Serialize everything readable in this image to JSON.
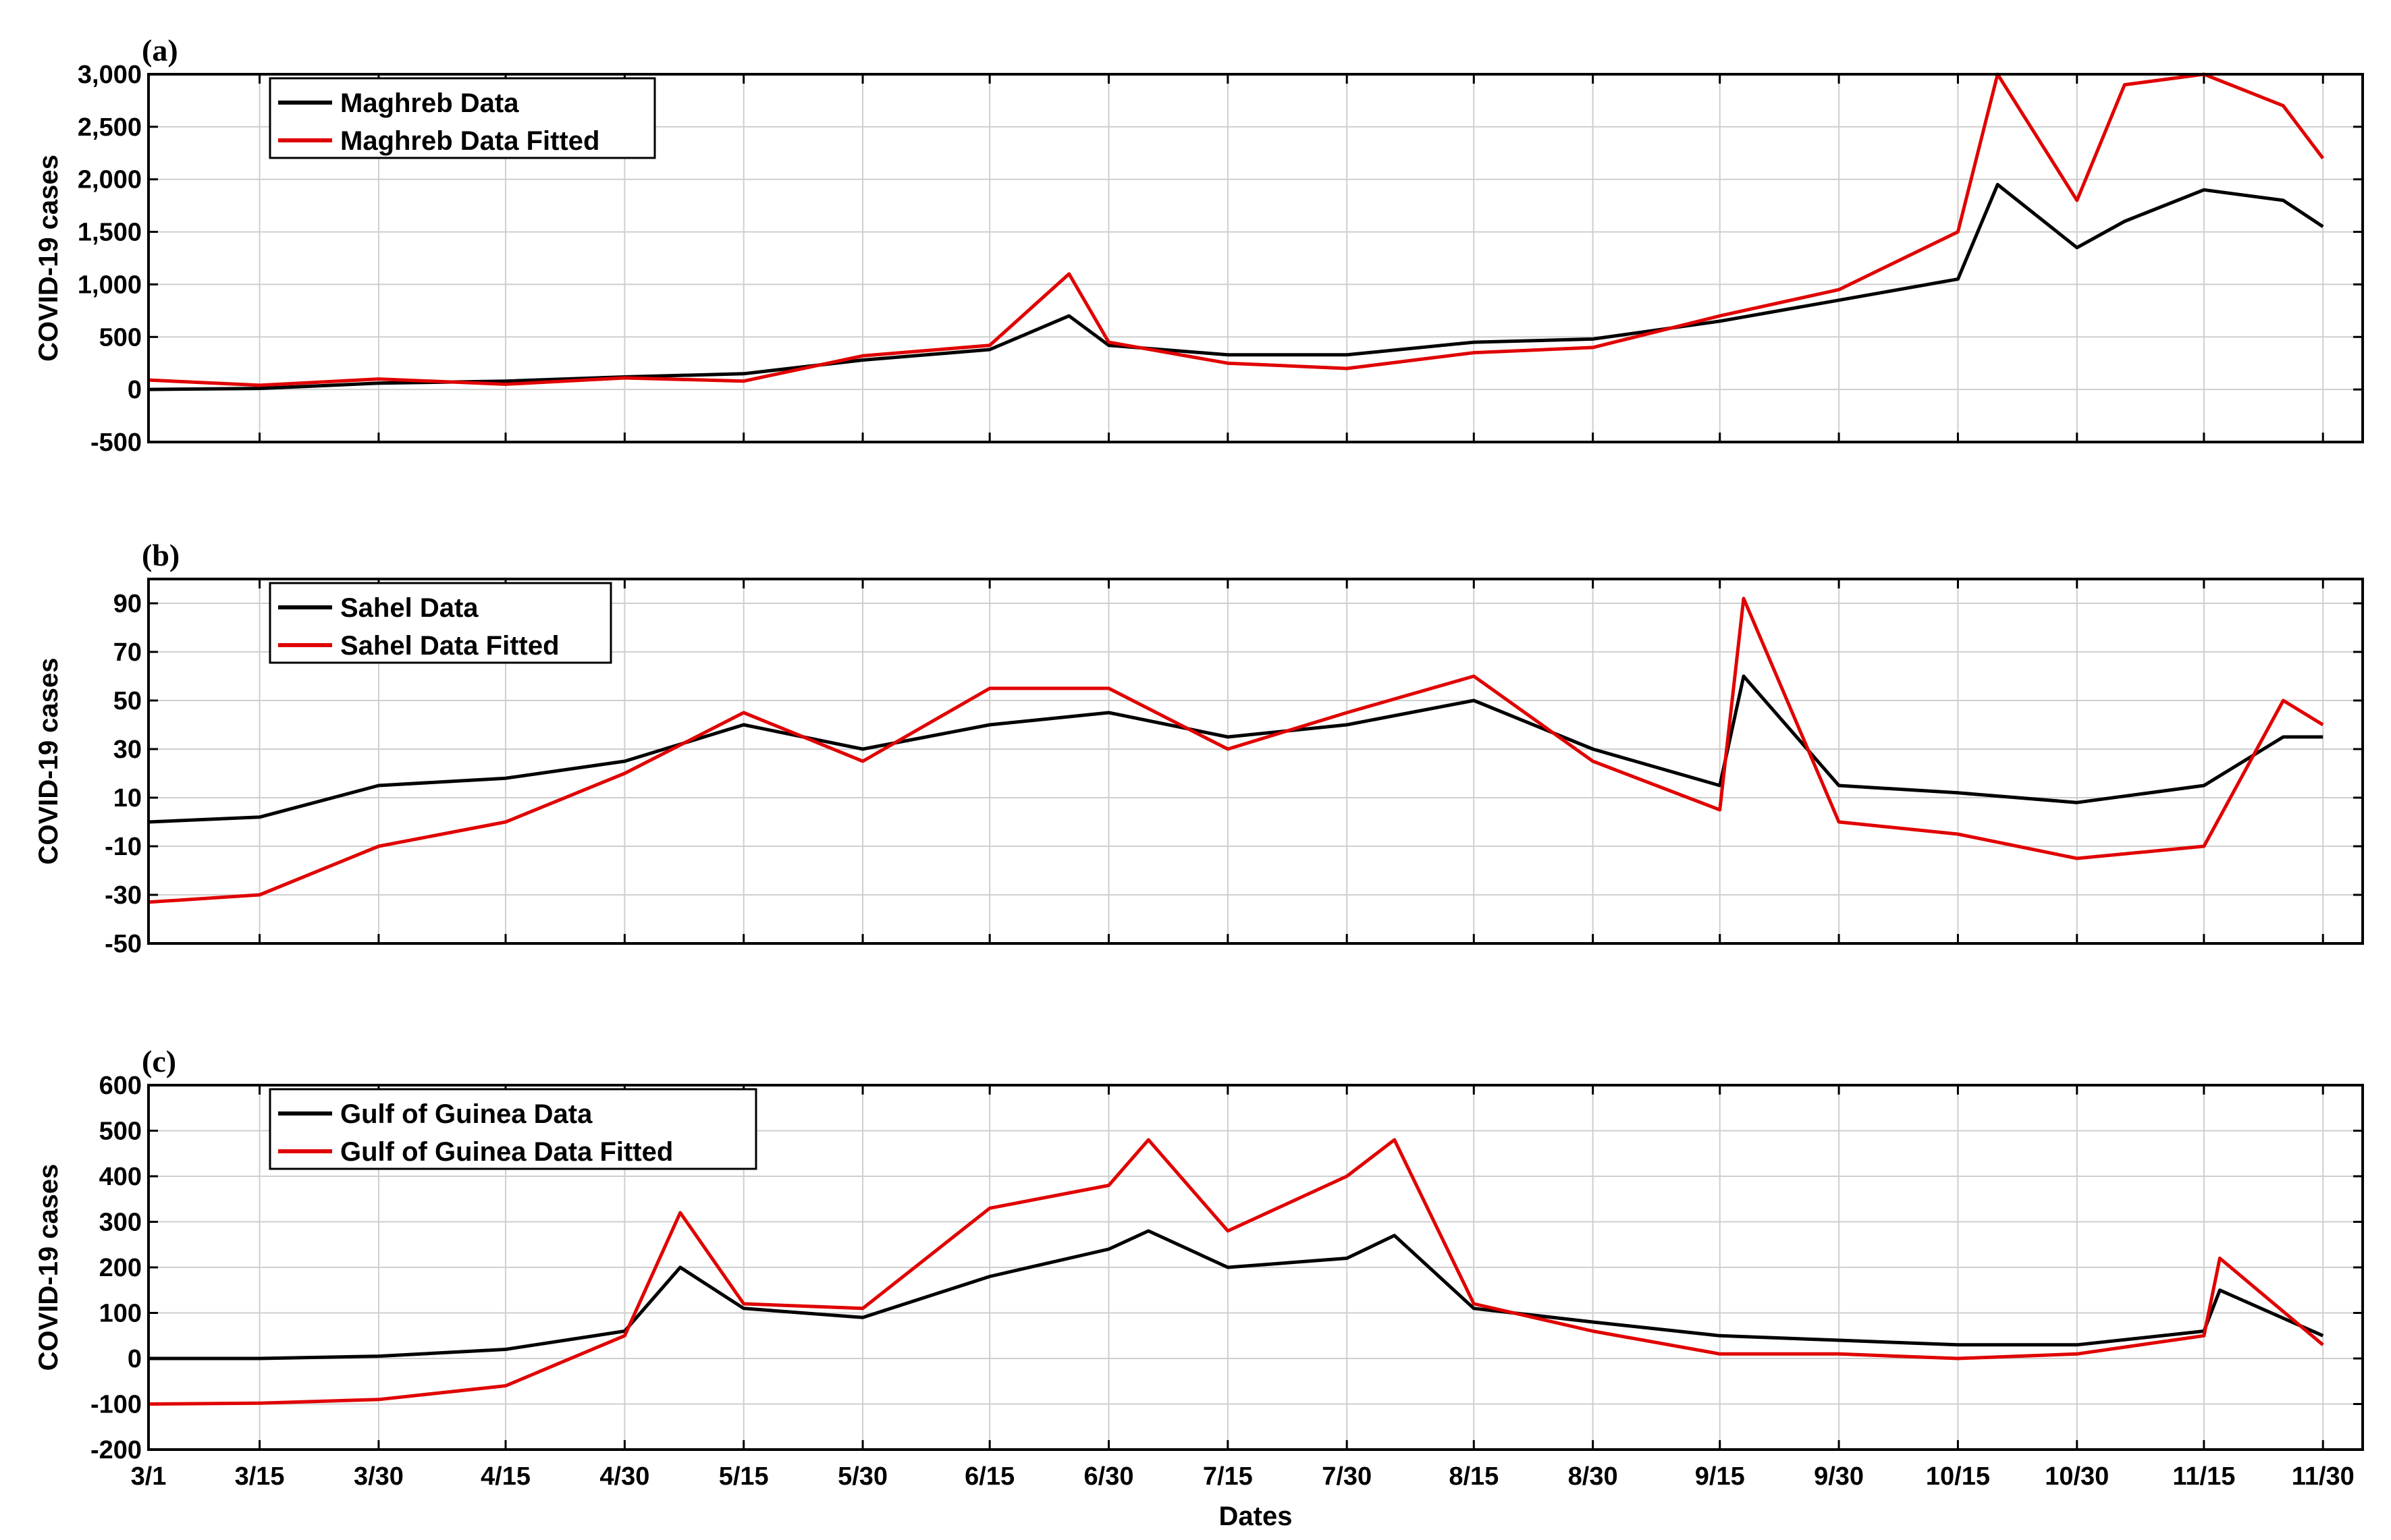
{
  "colors": {
    "data": "#000000",
    "fitted": "#e00000",
    "grid": "#cfcfcf"
  },
  "xlabel": "Dates",
  "x_tick_labels": [
    "3/1",
    "3/15",
    "3/30",
    "4/15",
    "4/30",
    "5/15",
    "5/30",
    "6/15",
    "6/30",
    "7/15",
    "7/30",
    "8/15",
    "8/30",
    "9/15",
    "9/30",
    "10/15",
    "10/30",
    "11/15",
    "11/30"
  ],
  "chart_data": [
    {
      "type": "line",
      "panel_label": "(a)",
      "ylabel": "COVID-19 cases",
      "ylim": [
        -500,
        3000
      ],
      "yticks": [
        -500,
        0,
        500,
        1000,
        1500,
        2000,
        2500,
        3000
      ],
      "ytick_labels": [
        "-500",
        "0",
        "500",
        "1,000",
        "1,500",
        "2,000",
        "2,500",
        "3,000"
      ],
      "grid": true,
      "legend_position": "top-left",
      "x": [
        "3/1",
        "3/15",
        "3/30",
        "4/15",
        "4/30",
        "5/15",
        "5/30",
        "6/15",
        "6/25",
        "6/30",
        "7/15",
        "7/30",
        "8/15",
        "8/30",
        "9/15",
        "9/30",
        "10/15",
        "10/20",
        "10/30",
        "11/5",
        "11/15",
        "11/25",
        "11/30"
      ],
      "series": [
        {
          "name": "Maghreb Data",
          "values": [
            0,
            10,
            60,
            80,
            120,
            150,
            280,
            380,
            700,
            420,
            330,
            330,
            450,
            480,
            650,
            850,
            1050,
            1950,
            1350,
            1600,
            1900,
            1800,
            1550
          ]
        },
        {
          "name": "Maghreb Data Fitted",
          "values": [
            90,
            40,
            100,
            50,
            110,
            80,
            320,
            420,
            1100,
            450,
            250,
            200,
            350,
            400,
            700,
            950,
            1500,
            3000,
            1800,
            2900,
            3000,
            2700,
            2200
          ]
        }
      ]
    },
    {
      "type": "line",
      "panel_label": "(b)",
      "ylabel": "COVID-19 cases",
      "ylim": [
        -50,
        100
      ],
      "yticks": [
        -50,
        -30,
        -10,
        10,
        30,
        50,
        70,
        90
      ],
      "ytick_labels": [
        "-50",
        "-30",
        "-10",
        "10",
        "30",
        "50",
        "70",
        "90"
      ],
      "grid": true,
      "legend_position": "top-left",
      "x": [
        "3/1",
        "3/15",
        "3/30",
        "4/15",
        "4/30",
        "5/15",
        "5/30",
        "6/15",
        "6/30",
        "7/15",
        "7/30",
        "8/15",
        "8/30",
        "9/15",
        "9/18",
        "9/30",
        "10/15",
        "10/30",
        "11/15",
        "11/25",
        "11/30"
      ],
      "series": [
        {
          "name": "Sahel Data",
          "values": [
            0,
            2,
            15,
            18,
            25,
            40,
            30,
            40,
            45,
            35,
            40,
            50,
            30,
            15,
            60,
            15,
            12,
            8,
            15,
            35,
            35
          ]
        },
        {
          "name": "Sahel Data Fitted",
          "values": [
            -33,
            -30,
            -10,
            0,
            20,
            45,
            25,
            55,
            55,
            30,
            45,
            60,
            25,
            5,
            92,
            0,
            -5,
            -15,
            -10,
            50,
            40
          ]
        }
      ]
    },
    {
      "type": "line",
      "panel_label": "(c)",
      "ylabel": "COVID-19 cases",
      "ylim": [
        -200,
        600
      ],
      "yticks": [
        -200,
        -100,
        0,
        100,
        200,
        300,
        400,
        500,
        600
      ],
      "ytick_labels": [
        "-200",
        "-100",
        "0",
        "100",
        "200",
        "300",
        "400",
        "500",
        "600"
      ],
      "grid": true,
      "legend_position": "top-left",
      "x": [
        "3/1",
        "3/15",
        "3/30",
        "4/15",
        "4/30",
        "5/7",
        "5/15",
        "5/30",
        "6/15",
        "6/30",
        "7/5",
        "7/15",
        "7/30",
        "8/5",
        "8/15",
        "8/30",
        "9/15",
        "9/30",
        "10/15",
        "10/30",
        "11/15",
        "11/17",
        "11/30"
      ],
      "series": [
        {
          "name": "Gulf of Guinea Data",
          "values": [
            0,
            0,
            5,
            20,
            60,
            200,
            110,
            90,
            180,
            240,
            280,
            200,
            220,
            270,
            110,
            80,
            50,
            40,
            30,
            30,
            60,
            150,
            50
          ]
        },
        {
          "name": "Gulf of Guinea Data Fitted",
          "values": [
            -100,
            -98,
            -90,
            -60,
            50,
            320,
            120,
            110,
            330,
            380,
            480,
            280,
            400,
            480,
            120,
            60,
            10,
            10,
            0,
            10,
            50,
            220,
            30
          ]
        }
      ]
    }
  ]
}
